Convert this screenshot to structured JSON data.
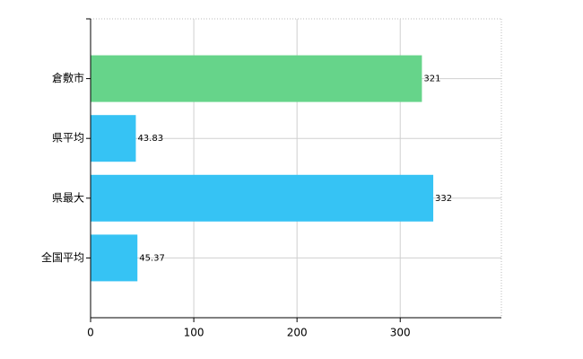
{
  "chart_data": {
    "type": "bar",
    "orientation": "horizontal",
    "categories": [
      "倉敷市",
      "県平均",
      "県最大",
      "全国平均"
    ],
    "values": [
      321,
      43.83,
      332,
      45.37
    ],
    "colors": [
      "#66d48a",
      "#36c3f4",
      "#36c3f4",
      "#36c3f4"
    ],
    "xlim": [
      0,
      398
    ],
    "xticks": [
      0,
      100,
      200,
      300
    ],
    "grid": true
  }
}
